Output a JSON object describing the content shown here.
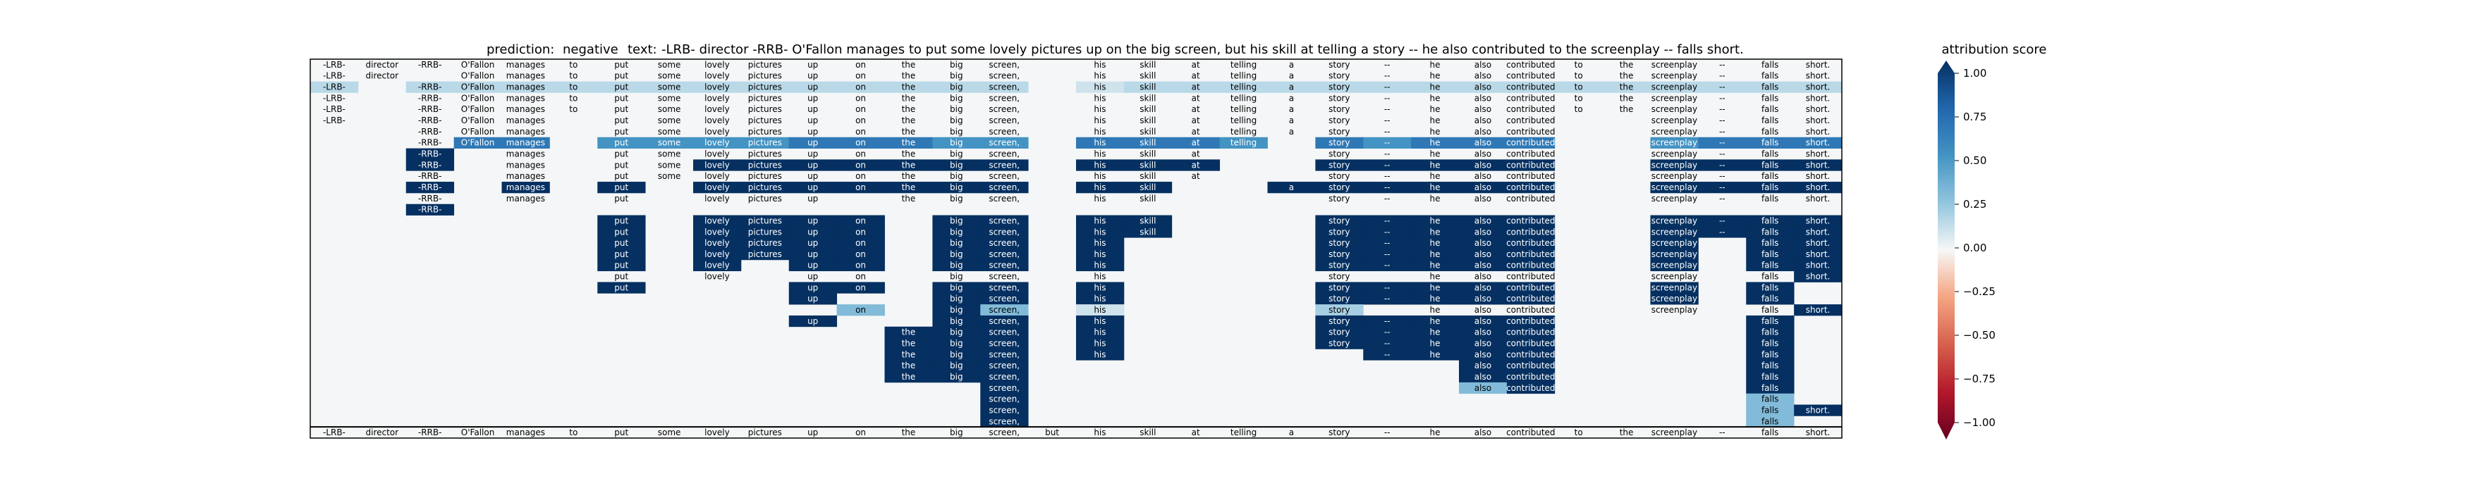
{
  "chart_data": {
    "type": "heatmap",
    "header": {
      "prediction_label": "prediction:",
      "prediction": "negative",
      "text_label": "text:",
      "text": "-LRB- director -RRB- O'Fallon manages to put some lovely pictures up on the big screen, but his skill at telling a story -- he also contributed to the screenplay -- falls short."
    },
    "tokens": [
      "-LRB-",
      "director",
      "-RRB-",
      "O'Fallon",
      "manages",
      "to",
      "put",
      "some",
      "lovely",
      "pictures",
      "up",
      "on",
      "the",
      "big",
      "screen,",
      "but",
      "his",
      "skill",
      "at",
      "telling",
      "a",
      "story",
      "--",
      "he",
      "also",
      "contributed",
      "to",
      "the",
      "screenplay",
      "--",
      "falls",
      "short."
    ],
    "codes": {
      "0": "n/a (token removed)",
      "1": "0.00",
      "2": "0.05",
      "3": "0.10",
      "4": "0.15",
      "5": "0.20",
      "6": "0.30",
      "7": "0.50",
      "8": "0.65",
      "9": "0.85",
      "A": "1.00"
    },
    "matrix": [
      "22211111111111101111111111111111",
      "22011111111111101111111111111111",
      "40444444444444403444444444444444",
      "20211111111111101111111111111111",
      "20211111111111101111111111111111",
      "20211011111111101111111111001111",
      "00211011111111101111111111001111",
      "00288077778887708887087888007888",
      "00A01011111111101110011111001111",
      "00A01011AAAAAAA0AAA00AAAAA00AAAA",
      "00101011111111101110011111001111",
      "00A0A0A0AAAAAAA0AA00AAAAAA00AAAA",
      "00101010111011101100011111001111",
      "00A00000000000000000000000000000",
      "000000A0AAAA0AA0AA000AAAAA00AAAA",
      "000000A0AAAA0AA0AA000AAAAA00AAAA",
      "000000A0AAAA0AA0A0000AAAAA00A0AA",
      "000000A0AAAA0AA0A0000AAAAA00A0AA",
      "000000A0A0AA0AA0A0000AAAAA00A0AA",
      "0000001010110110100001011100101A",
      "000000A000AA0AA0A0000AAAAA00A0A0",
      "0000000000A00AA0A0000AAAAA00A0A0",
      "0000000000060A60300005011100102A",
      "0000000000A00AA0A0000AAAAA0000A0",
      "000000000000AAA0A0000AAAAA0000A0",
      "000000000000AAA0A0000AAAAA0000A0",
      "000000000000AAA0A00000AAAA0000A0",
      "000000000000AAA000000000AA0000A0",
      "000000000000AAA000000000AA0000A0",
      "00000000000000A0000000006A0000A0",
      "00000000000000A00000000000000060",
      "00000000000000A0000000000000006A",
      "00000000000000A00000000000000060",
      "11111111111111111111111111111111"
    ],
    "color_scale": {
      "label": "attribution score",
      "ticks": [
        "1.00",
        "0.75",
        "0.50",
        "0.25",
        "0.00",
        "−0.25",
        "−0.50",
        "−0.75",
        "−1.00"
      ],
      "vmin": -1.0,
      "vmax": 1.0,
      "colormap": "RdBu",
      "background_color": "#f4f6f7"
    }
  }
}
